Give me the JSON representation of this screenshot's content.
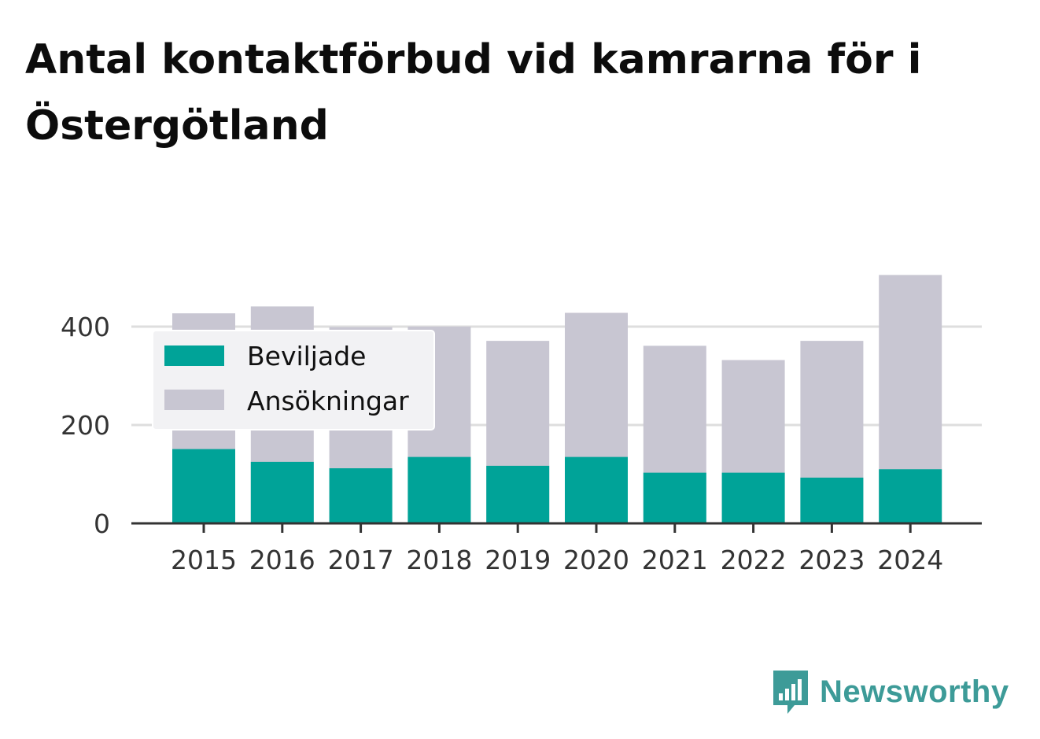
{
  "chart_data": {
    "type": "bar",
    "stacked": false,
    "overlay": true,
    "title": "Antal kontaktförbud vid kamrarna för i Östergötland",
    "categories": [
      "2015",
      "2016",
      "2017",
      "2018",
      "2019",
      "2020",
      "2021",
      "2022",
      "2023",
      "2024"
    ],
    "series": [
      {
        "name": "Ansökningar",
        "color": "#c8c6d2",
        "values": [
          427,
          441,
          399,
          400,
          371,
          428,
          361,
          332,
          371,
          505
        ]
      },
      {
        "name": "Beviljade",
        "color": "#00a398",
        "values": [
          151,
          125,
          112,
          135,
          117,
          135,
          103,
          103,
          93,
          110
        ]
      }
    ],
    "legend": [
      {
        "label": "Beviljade",
        "color": "#00a398"
      },
      {
        "label": "Ansökningar",
        "color": "#c8c6d2"
      }
    ],
    "legend_position": "top-left",
    "yticks": [
      0,
      200,
      400
    ],
    "ylim": [
      0,
      520
    ],
    "grid": true,
    "xlabel": "",
    "ylabel": ""
  },
  "brand": {
    "name": "Newsworthy",
    "color": "#3d9b98",
    "icon": "newsworthy-logo-icon"
  }
}
